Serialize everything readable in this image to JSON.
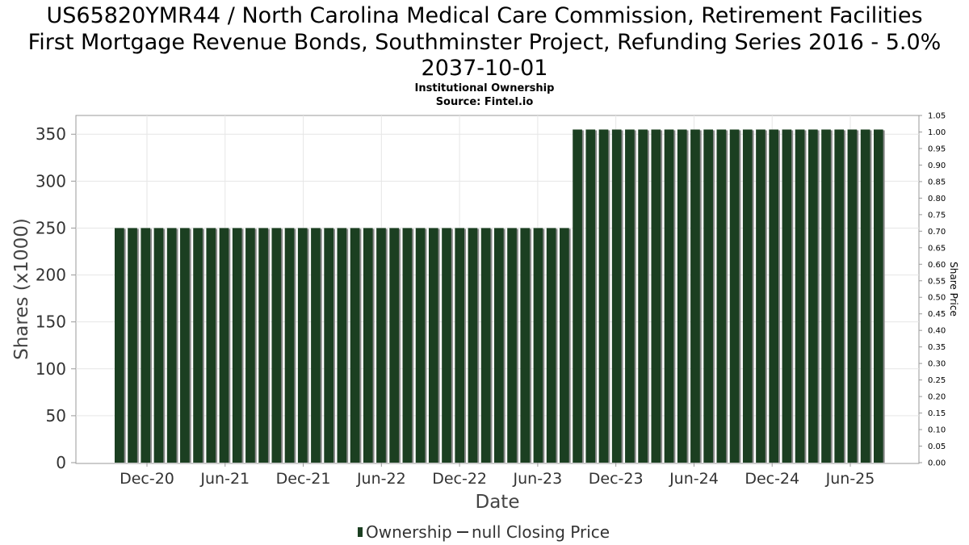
{
  "chart_data": {
    "type": "bar",
    "title_lines": [
      "US65820YMR44 / North Carolina Medical Care Commission, Retirement Facilities",
      "First Mortgage Revenue Bonds, Southminster Project, Refunding Series 2016 - 5.0%",
      "2037-10-01"
    ],
    "subtitle_lines": [
      "Institutional Ownership",
      "Source: Fintel.io"
    ],
    "xlabel": "Date",
    "ylabel": "Shares (x1000)",
    "y2label": "Share Price",
    "ylim": [
      0,
      370
    ],
    "y2lim": [
      0,
      1.05
    ],
    "yticks": [
      0,
      50,
      100,
      150,
      200,
      250,
      300,
      350
    ],
    "y2ticks": [
      "0.00",
      "0.05",
      "0.10",
      "0.15",
      "0.20",
      "0.25",
      "0.30",
      "0.35",
      "0.40",
      "0.45",
      "0.50",
      "0.55",
      "0.60",
      "0.65",
      "0.70",
      "0.75",
      "0.80",
      "0.85",
      "0.90",
      "0.95",
      "1.00",
      "1.05"
    ],
    "xticks": [
      "Dec-20",
      "Jun-21",
      "Dec-21",
      "Jun-22",
      "Dec-22",
      "Jun-23",
      "Dec-23",
      "Jun-24",
      "Dec-24",
      "Jun-25"
    ],
    "grid": true,
    "legend_position": "bottom",
    "series": [
      {
        "name": "Ownership",
        "color": "#1b3f21",
        "values": [
          250,
          250,
          250,
          250,
          250,
          250,
          250,
          250,
          250,
          250,
          250,
          250,
          250,
          250,
          250,
          250,
          250,
          250,
          250,
          250,
          250,
          250,
          250,
          250,
          250,
          250,
          250,
          250,
          250,
          250,
          250,
          250,
          250,
          250,
          250,
          355,
          355,
          355,
          355,
          355,
          355,
          355,
          355,
          355,
          355,
          355,
          355,
          355,
          355,
          355,
          355,
          355,
          355,
          355,
          355,
          355,
          355,
          355,
          355
        ]
      },
      {
        "name": "null Closing Price",
        "color": "#333333",
        "values": []
      }
    ]
  }
}
